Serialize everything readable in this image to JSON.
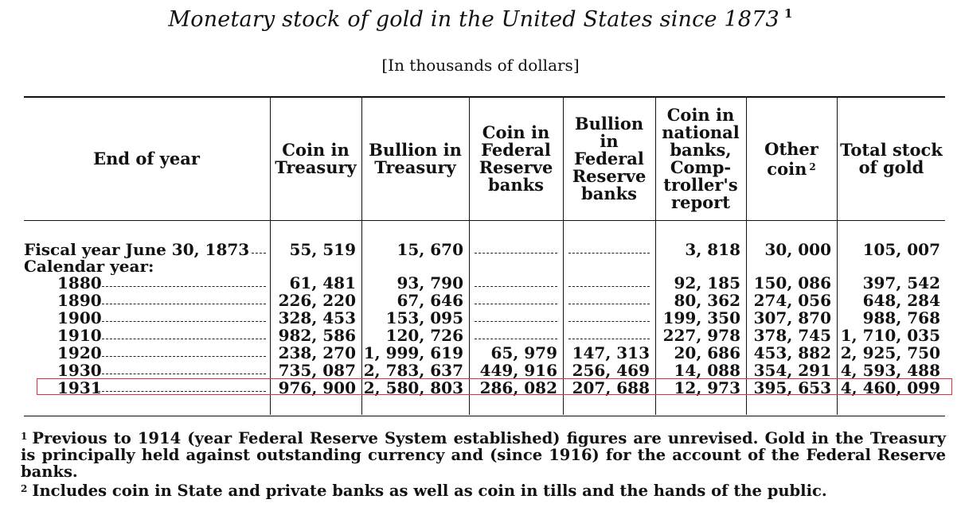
{
  "title": "Monetary stock of gold in the United States since 1873",
  "title_note": "1",
  "subtitle": "[In thousands of dollars]",
  "headers": {
    "stub": "End of year",
    "coin_treasury": [
      "Coin in",
      "Treasury"
    ],
    "bullion_treasury": [
      "Bullion in",
      "Treasury"
    ],
    "coin_frb": [
      "Coin in",
      "Federal",
      "Reserve",
      "banks"
    ],
    "bullion_frb": [
      "Bullion",
      "in",
      "Federal",
      "Reserve",
      "banks"
    ],
    "coin_national": [
      "Coin in",
      "national",
      "banks,",
      "Comp-",
      "troller's",
      "report"
    ],
    "other_coin": [
      "Other",
      "coin"
    ],
    "other_coin_note": "2",
    "total": [
      "Total stock",
      "of gold"
    ]
  },
  "rows": [
    {
      "label": "Fiscal year June 30, 1873",
      "values": [
        "55, 519",
        "15, 670",
        "",
        "",
        "3, 818",
        "30, 000",
        "105, 007"
      ]
    },
    {
      "label": "Calendar year:",
      "values": null
    },
    {
      "label": "1880",
      "values": [
        "61, 481",
        "93, 790",
        "",
        "",
        "92, 185",
        "150, 086",
        "397, 542"
      ]
    },
    {
      "label": "1890",
      "values": [
        "226, 220",
        "67, 646",
        "",
        "",
        "80, 362",
        "274, 056",
        "648, 284"
      ]
    },
    {
      "label": "1900",
      "values": [
        "328, 453",
        "153, 095",
        "",
        "",
        "199, 350",
        "307, 870",
        "988, 768"
      ]
    },
    {
      "label": "1910",
      "values": [
        "982, 586",
        "120, 726",
        "",
        "",
        "227, 978",
        "378, 745",
        "1, 710, 035"
      ]
    },
    {
      "label": "1920",
      "values": [
        "238, 270",
        "1, 999, 619",
        "65, 979",
        "147, 313",
        "20, 686",
        "453, 882",
        "2, 925, 750"
      ]
    },
    {
      "label": "1930",
      "values": [
        "735, 087",
        "2, 783, 637",
        "449, 916",
        "256, 469",
        "14, 088",
        "354, 291",
        "4, 593, 488"
      ]
    },
    {
      "label": "1931",
      "values": [
        "976, 900",
        "2, 580, 803",
        "286, 082",
        "207, 688",
        "12, 973",
        "395, 653",
        "4, 460, 099"
      ]
    }
  ],
  "highlight_color": "#e0313c",
  "footnotes": [
    {
      "mark": "1",
      "text": "Previous to 1914 (year Federal Reserve System established) figures are unrevised. Gold in the Treasury is principally held against outstanding currency and (since 1916) for the account of the Federal Reserve banks."
    },
    {
      "mark": "2",
      "text": "Includes coin in State and private banks as well as coin in tills and the hands of the public."
    }
  ]
}
